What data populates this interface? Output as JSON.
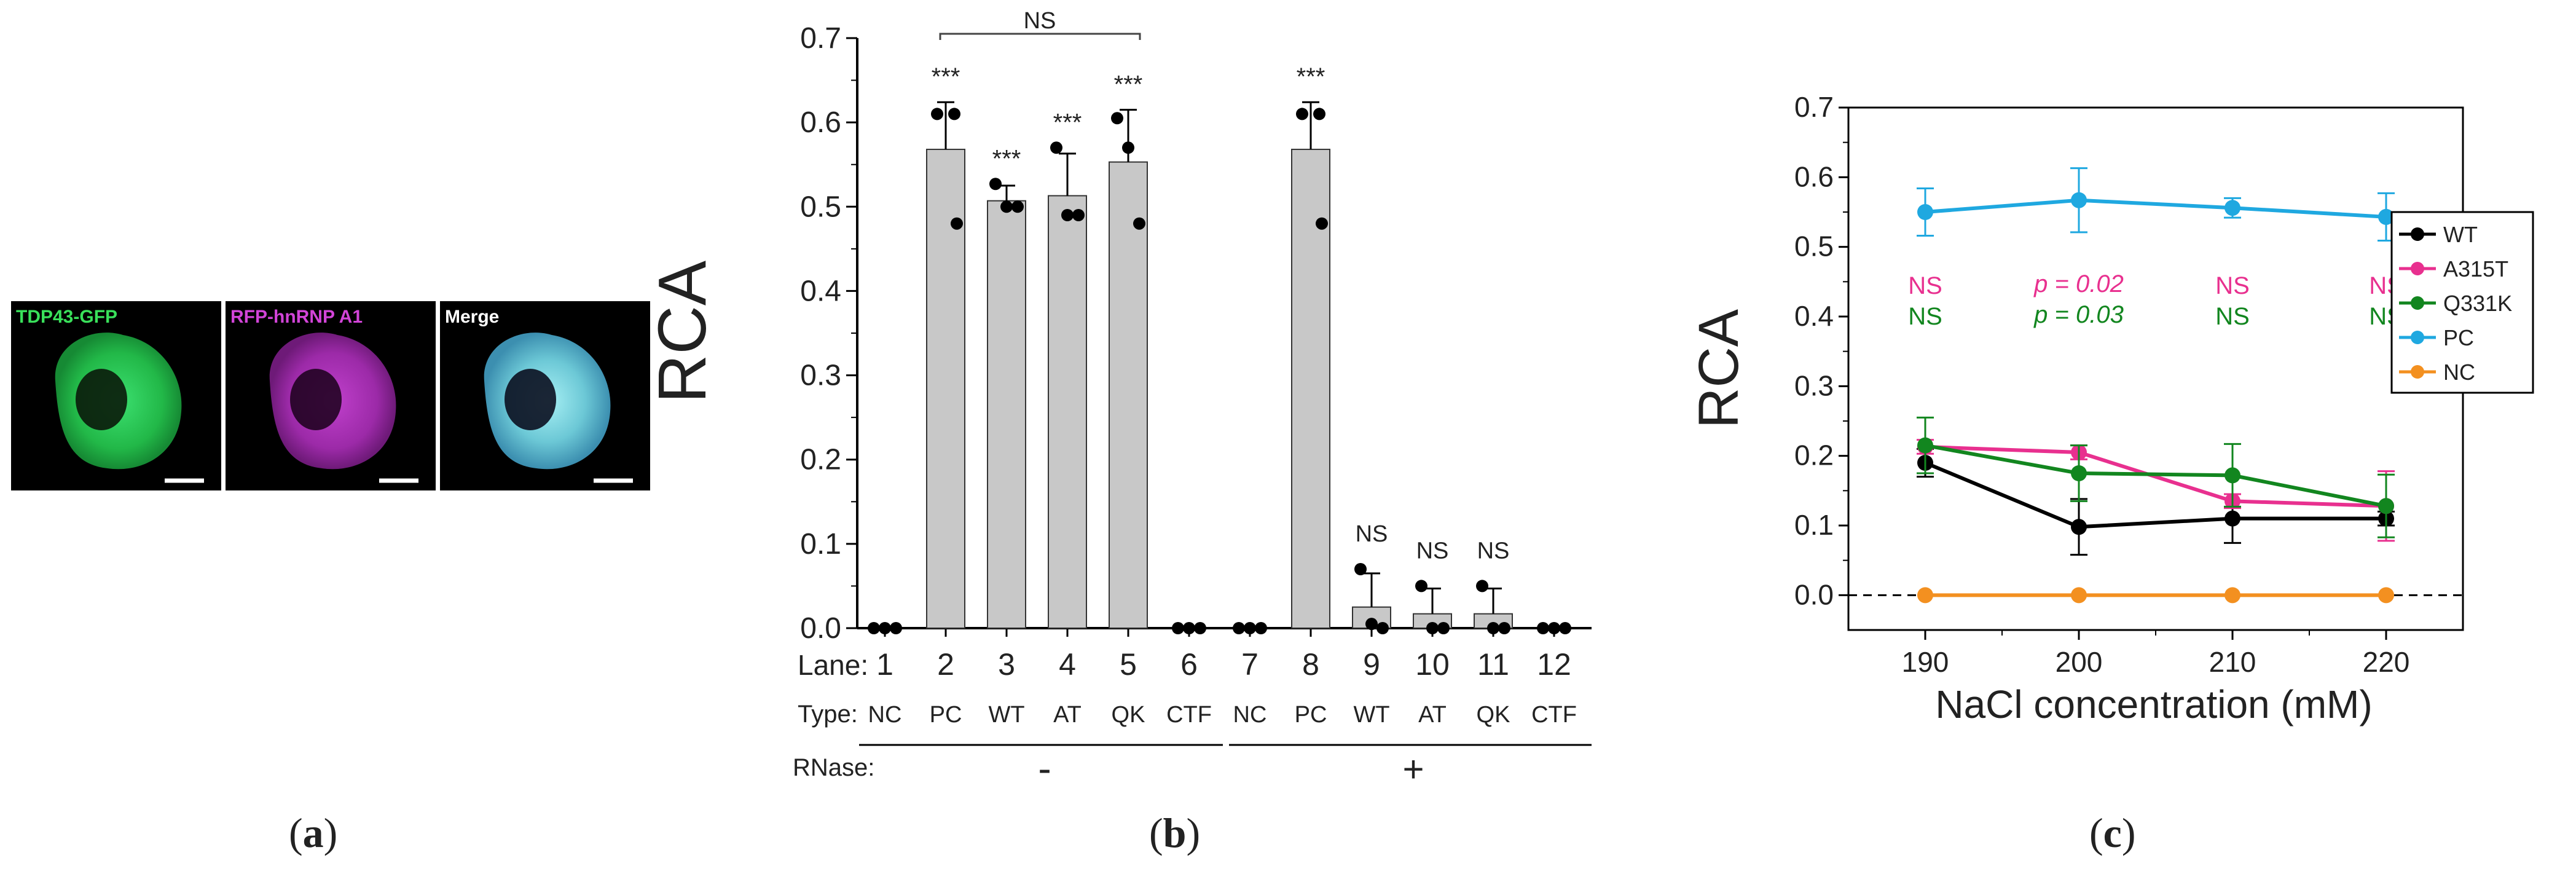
{
  "panel_a": {
    "letter": "a",
    "labels": [
      "TDP43-GFP",
      "RFP-hnRNP A1",
      "Merge"
    ],
    "colors": {
      "green": "#2fd05a",
      "magenta": "#c43bd0",
      "merge": "#69c9d4"
    }
  },
  "panel_b": {
    "letter": "b",
    "ylabel": "RCA",
    "yticks": [
      "0.0",
      "0.1",
      "0.2",
      "0.3",
      "0.4",
      "0.5",
      "0.6",
      "0.7"
    ],
    "lane_label": "Lane:",
    "type_label": "Type:",
    "rnase_label": "RNase:",
    "rnase_minus": "-",
    "rnase_plus": "+",
    "bracket_label": "NS",
    "bar_color": "#c8c8c8"
  },
  "panel_c": {
    "letter": "c",
    "ylabel": "RCA",
    "xlabel": "NaCl concentration (mM)",
    "yticks": [
      "0.0",
      "0.1",
      "0.2",
      "0.3",
      "0.4",
      "0.5",
      "0.6",
      "0.7"
    ],
    "xticks": [
      "190",
      "200",
      "210",
      "220"
    ],
    "annot_colors": {
      "pink": "#e8308f",
      "green": "#12861f"
    },
    "annotations": [
      {
        "x": 190,
        "top": "NS",
        "bottom": "NS"
      },
      {
        "x": 200,
        "top": "p = 0.02",
        "bottom": "p = 0.03"
      },
      {
        "x": 210,
        "top": "NS",
        "bottom": "NS"
      },
      {
        "x": 220,
        "top": "NS",
        "bottom": "NS"
      }
    ]
  },
  "chart_data": [
    {
      "type": "bar",
      "ylabel": "RCA",
      "ylim": [
        0,
        0.7
      ],
      "categories": [
        "1",
        "2",
        "3",
        "4",
        "5",
        "6",
        "7",
        "8",
        "9",
        "10",
        "11",
        "12"
      ],
      "types": [
        "NC",
        "PC",
        "WT",
        "AT",
        "QK",
        "CTF",
        "NC",
        "PC",
        "WT",
        "AT",
        "QK",
        "CTF"
      ],
      "rnase": [
        "-",
        "-",
        "-",
        "-",
        "-",
        "-",
        "+",
        "+",
        "+",
        "+",
        "+",
        "+"
      ],
      "values": [
        0.0,
        0.568,
        0.507,
        0.513,
        0.553,
        0.0,
        0.0,
        0.568,
        0.025,
        0.017,
        0.017,
        0.0
      ],
      "errors": [
        0.0,
        0.056,
        0.018,
        0.05,
        0.062,
        0.0,
        0.0,
        0.056,
        0.04,
        0.03,
        0.03,
        0.0
      ],
      "points": [
        [
          0,
          0,
          0
        ],
        [
          0.61,
          0.61,
          0.48
        ],
        [
          0.527,
          0.5,
          0.5
        ],
        [
          0.57,
          0.49,
          0.49
        ],
        [
          0.605,
          0.57,
          0.48
        ],
        [
          0,
          0,
          0
        ],
        [
          0,
          0,
          0
        ],
        [
          0.61,
          0.61,
          0.48
        ],
        [
          0.07,
          0.005,
          0.0
        ],
        [
          0.05,
          0.0,
          0.0
        ],
        [
          0.05,
          0.0,
          0.0
        ],
        [
          0,
          0,
          0
        ]
      ],
      "significance": [
        "",
        "***",
        "***",
        "***",
        "***",
        "",
        "",
        "***",
        "NS",
        "NS",
        "NS",
        ""
      ]
    },
    {
      "type": "line",
      "xlabel": "NaCl concentration (mM)",
      "ylabel": "RCA",
      "xlim": [
        185,
        225
      ],
      "ylim": [
        -0.05,
        0.7
      ],
      "x": [
        190,
        200,
        210,
        220
      ],
      "series": [
        {
          "name": "WT",
          "color": "#000000",
          "values": [
            0.19,
            0.098,
            0.11,
            0.11
          ],
          "errors": [
            0.02,
            0.04,
            0.035,
            0.01
          ]
        },
        {
          "name": "A315T",
          "color": "#e8308f",
          "values": [
            0.213,
            0.205,
            0.135,
            0.128
          ],
          "errors": [
            0.01,
            0.01,
            0.01,
            0.05
          ]
        },
        {
          "name": "Q331K",
          "color": "#12861f",
          "values": [
            0.215,
            0.175,
            0.172,
            0.128
          ],
          "errors": [
            0.04,
            0.04,
            0.045,
            0.045
          ]
        },
        {
          "name": "PC",
          "color": "#1fa8e0",
          "values": [
            0.55,
            0.567,
            0.556,
            0.543
          ],
          "errors": [
            0.034,
            0.046,
            0.014,
            0.034
          ]
        },
        {
          "name": "NC",
          "color": "#f39020",
          "values": [
            0.0,
            0.0,
            0.0,
            0.0
          ],
          "errors": [
            0,
            0,
            0,
            0
          ]
        }
      ]
    }
  ]
}
